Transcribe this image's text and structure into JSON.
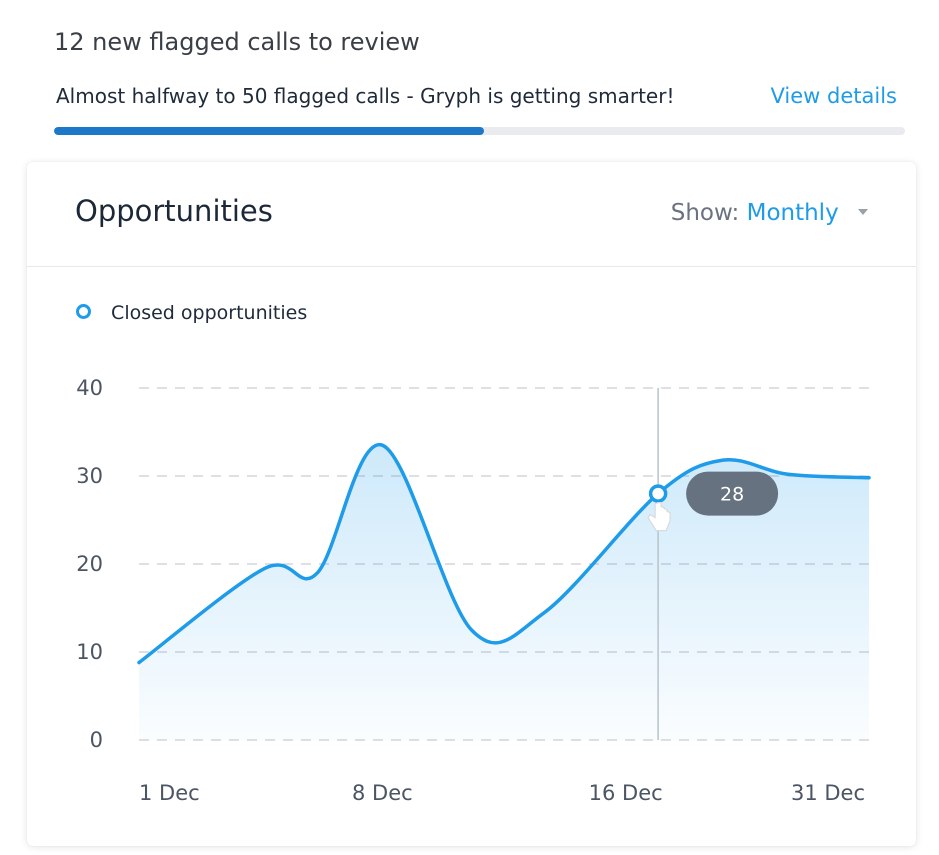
{
  "banner": {
    "title": "12 new flagged calls to review",
    "message": "Almost halfway to 50 flagged calls - Gryph is getting smarter!",
    "link_label": "View details",
    "progress_percent": 50.5
  },
  "card": {
    "title": "Opportunities",
    "show_label": "Show:",
    "show_value": "Monthly"
  },
  "chart_data": {
    "type": "area",
    "legend": [
      "Closed opportunities"
    ],
    "x_ticks": [
      "1 Dec",
      "8 Dec",
      "16 Dec",
      "31 Dec"
    ],
    "ylim": [
      0,
      40
    ],
    "y_ticks": [
      0,
      10,
      20,
      30,
      40
    ],
    "grid": true,
    "series": [
      {
        "name": "Closed opportunities",
        "color": "#1e9be9",
        "points": [
          {
            "x": 0.0,
            "y": 8.8
          },
          {
            "x": 1.55,
            "y": 19.5
          },
          {
            "x": 2.2,
            "y": 19.0
          },
          {
            "x": 3.0,
            "y": 33.5
          },
          {
            "x": 4.1,
            "y": 12.5
          },
          {
            "x": 5.0,
            "y": 14.5
          },
          {
            "x": 6.4,
            "y": 28.0
          },
          {
            "x": 7.2,
            "y": 31.8
          },
          {
            "x": 8.0,
            "y": 30.2
          },
          {
            "x": 9.0,
            "y": 29.8
          }
        ]
      }
    ],
    "x_tick_positions": [
      0,
      3,
      6,
      9
    ],
    "hover": {
      "x": 6.4,
      "value": "28"
    }
  }
}
